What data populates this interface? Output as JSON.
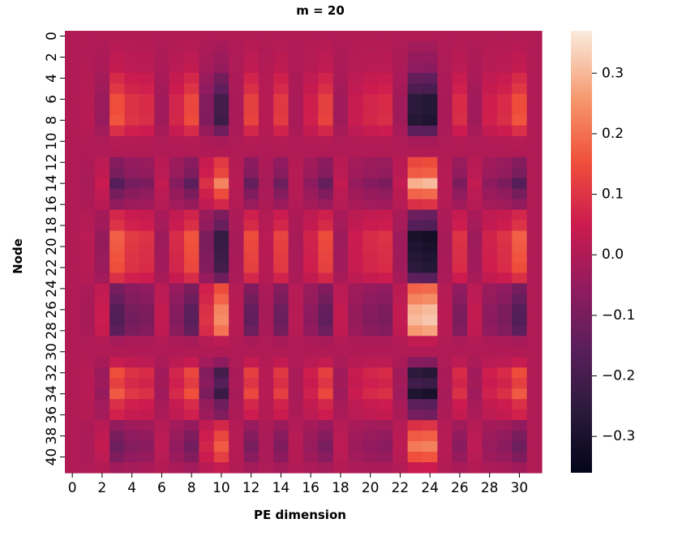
{
  "chart_data": {
    "type": "heatmap",
    "title": "m = 20",
    "xlabel": "PE dimension",
    "ylabel": "Node",
    "n_rows": 42,
    "n_cols": 32,
    "x_tick_labels": [
      "0",
      "2",
      "4",
      "6",
      "8",
      "10",
      "12",
      "14",
      "16",
      "18",
      "20",
      "22",
      "24",
      "26",
      "28",
      "30"
    ],
    "y_tick_labels": [
      "0",
      "2",
      "4",
      "6",
      "8",
      "10",
      "12",
      "14",
      "16",
      "18",
      "20",
      "22",
      "24",
      "26",
      "28",
      "30",
      "32",
      "34",
      "36",
      "38",
      "40"
    ],
    "colorbar": {
      "vmin": -0.36,
      "vmax": 0.37,
      "ticks": [
        0.3,
        0.2,
        0.1,
        0.0,
        -0.1,
        -0.2,
        -0.3
      ],
      "tick_labels": [
        "0.3",
        "0.2",
        "0.1",
        "0.0",
        "−0.1",
        "−0.2",
        "−0.3"
      ],
      "colormap": "rocket"
    },
    "row_weights": [
      0.0,
      0.08,
      0.15,
      0.2,
      0.45,
      0.6,
      0.85,
      0.85,
      0.9,
      0.5,
      0.05,
      0.0,
      -0.45,
      -0.55,
      -0.95,
      -0.6,
      -0.3,
      0.4,
      0.55,
      1.0,
      0.95,
      0.9,
      0.85,
      0.5,
      -0.6,
      -0.75,
      -0.95,
      -1.0,
      -0.85,
      -0.1,
      0.0,
      0.25,
      0.85,
      0.7,
      0.95,
      0.5,
      0.35,
      -0.3,
      -0.55,
      -0.7,
      -0.5,
      -0.15
    ],
    "col_weights": [
      0.0,
      0.05,
      -0.15,
      0.55,
      0.35,
      0.3,
      -0.1,
      0.25,
      0.5,
      -0.3,
      -0.75,
      -0.05,
      0.45,
      0.05,
      0.4,
      -0.05,
      0.2,
      0.45,
      -0.1,
      0.15,
      0.25,
      0.3,
      -0.1,
      -0.95,
      -1.0,
      -0.05,
      0.3,
      -0.1,
      0.2,
      0.3,
      0.55,
      0.0
    ],
    "scale": 0.32,
    "base_value": 0.0
  }
}
